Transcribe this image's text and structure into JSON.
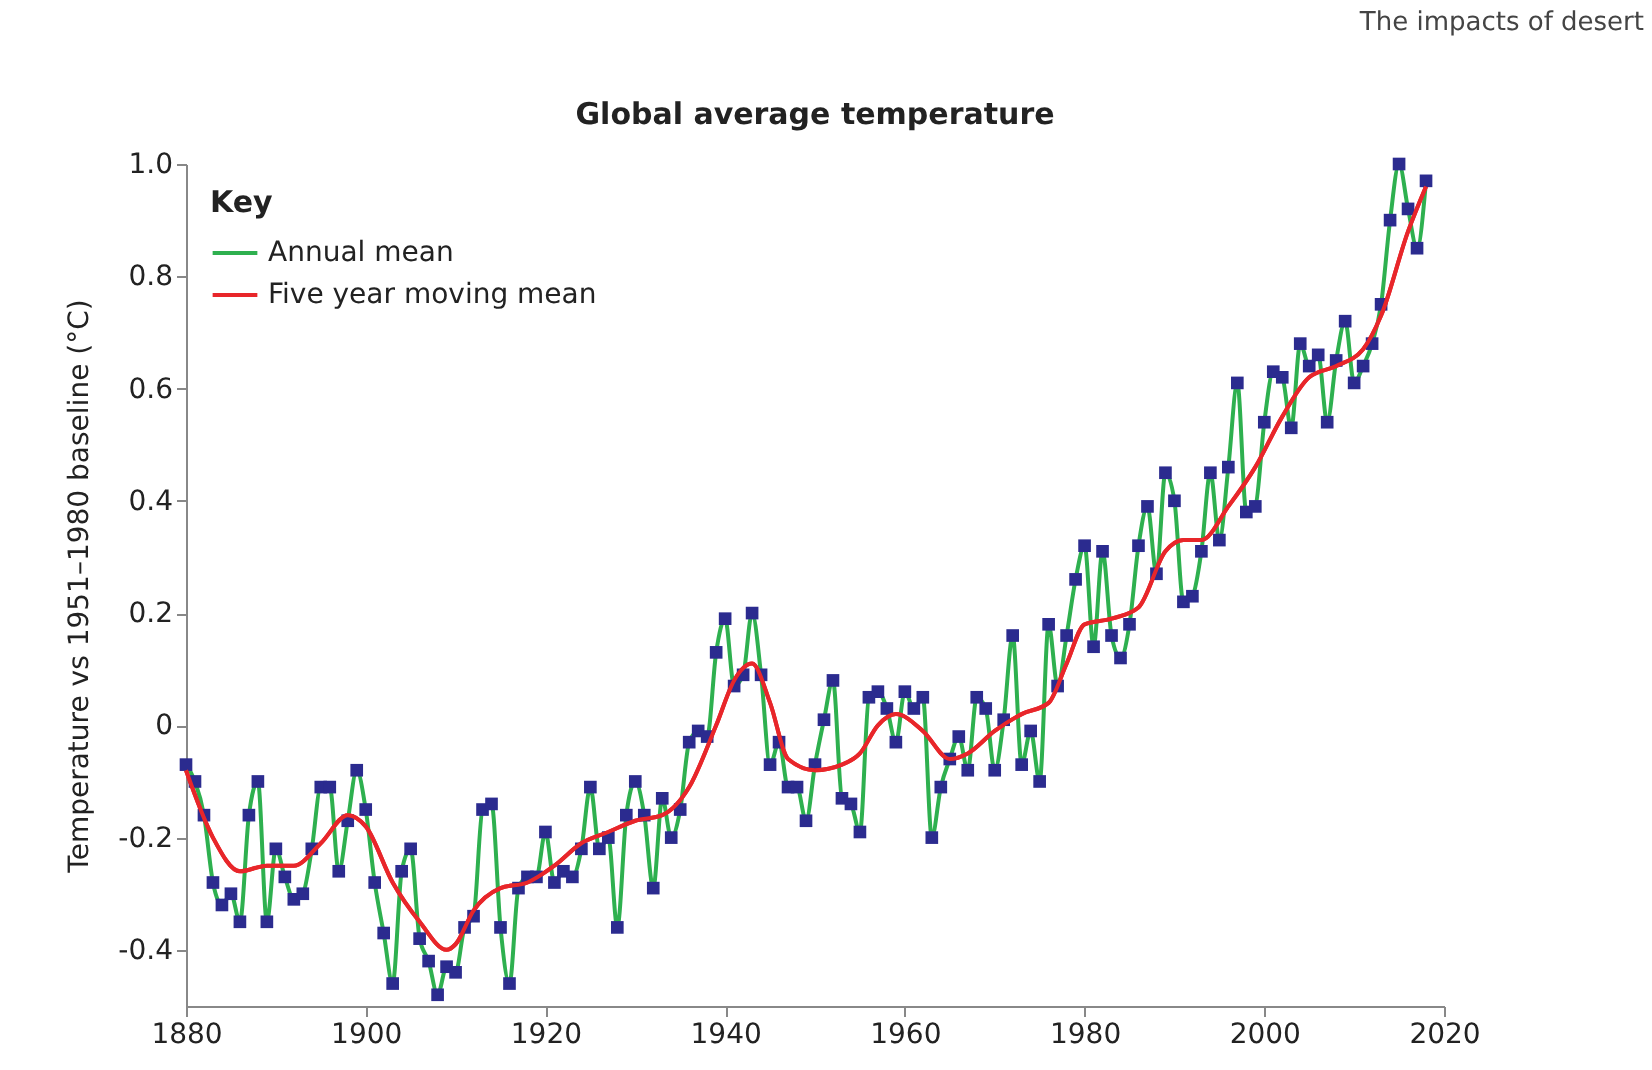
{
  "chart_data": {
    "type": "line",
    "title": "Global average temperature",
    "ylabel": "Temperature vs 1951–1980 baseline (°C)",
    "annotations": [
      "The impacts of desert"
    ],
    "legend_title": "Key",
    "legend": "top left",
    "marker": "square",
    "grid": false,
    "xlim": [
      1880,
      2020
    ],
    "xticks": [
      1880,
      1900,
      1920,
      1940,
      1960,
      1980,
      2000,
      2020
    ],
    "ylim": [
      -0.5,
      1.0
    ],
    "yticks": [
      -0.4,
      -0.2,
      0,
      0.2,
      0.4,
      0.6,
      0.8,
      {
        "value": 1.0,
        "label": "1.0"
      }
    ],
    "x": [
      1880,
      1881,
      1882,
      1883,
      1884,
      1885,
      1886,
      1887,
      1888,
      1889,
      1890,
      1891,
      1892,
      1893,
      1894,
      1895,
      1896,
      1897,
      1898,
      1899,
      1900,
      1901,
      1902,
      1903,
      1904,
      1905,
      1906,
      1907,
      1908,
      1909,
      1910,
      1911,
      1912,
      1913,
      1914,
      1915,
      1916,
      1917,
      1918,
      1919,
      1920,
      1921,
      1922,
      1923,
      1924,
      1925,
      1926,
      1927,
      1928,
      1929,
      1930,
      1931,
      1932,
      1933,
      1934,
      1935,
      1936,
      1937,
      1938,
      1939,
      1940,
      1941,
      1942,
      1943,
      1944,
      1945,
      1946,
      1947,
      1948,
      1949,
      1950,
      1951,
      1952,
      1953,
      1954,
      1955,
      1956,
      1957,
      1958,
      1959,
      1960,
      1961,
      1962,
      1963,
      1964,
      1965,
      1966,
      1967,
      1968,
      1969,
      1970,
      1971,
      1972,
      1973,
      1974,
      1975,
      1976,
      1977,
      1978,
      1979,
      1980,
      1981,
      1982,
      1983,
      1984,
      1985,
      1986,
      1987,
      1988,
      1989,
      1990,
      1991,
      1992,
      1993,
      1994,
      1995,
      1996,
      1997,
      1998,
      1999,
      2000,
      2001,
      2002,
      2003,
      2004,
      2005,
      2006,
      2007,
      2008,
      2009,
      2010,
      2011,
      2012,
      2013,
      2014,
      2015,
      2016,
      2017,
      2018
    ],
    "series": [
      {
        "name": "Annual mean",
        "color": "#2eb04f",
        "values": [
          -0.07,
          -0.1,
          -0.16,
          -0.28,
          -0.32,
          -0.3,
          -0.35,
          -0.16,
          -0.1,
          -0.35,
          -0.22,
          -0.27,
          -0.31,
          -0.3,
          -0.22,
          -0.11,
          -0.11,
          -0.26,
          -0.17,
          -0.08,
          -0.15,
          -0.28,
          -0.37,
          -0.46,
          -0.26,
          -0.22,
          -0.38,
          -0.42,
          -0.48,
          -0.43,
          -0.44,
          -0.36,
          -0.34,
          -0.15,
          -0.14,
          -0.36,
          -0.46,
          -0.29,
          -0.27,
          -0.27,
          -0.19,
          -0.28,
          -0.26,
          -0.27,
          -0.22,
          -0.11,
          -0.22,
          -0.2,
          -0.36,
          -0.16,
          -0.1,
          -0.16,
          -0.29,
          -0.13,
          -0.2,
          -0.15,
          -0.03,
          -0.01,
          -0.02,
          0.13,
          0.19,
          0.07,
          0.09,
          0.2,
          0.09,
          -0.07,
          -0.03,
          -0.11,
          -0.11,
          -0.17,
          -0.07,
          0.01,
          0.08,
          -0.13,
          -0.14,
          -0.19,
          0.05,
          0.06,
          0.03,
          -0.03,
          0.06,
          0.03,
          0.05,
          -0.2,
          -0.11,
          -0.06,
          -0.02,
          -0.08,
          0.05,
          0.03,
          -0.08,
          0.01,
          0.16,
          -0.07,
          -0.01,
          -0.1,
          0.18,
          0.07,
          0.16,
          0.26,
          0.32,
          0.14,
          0.31,
          0.16,
          0.12,
          0.18,
          0.32,
          0.39,
          0.27,
          0.45,
          0.4,
          0.22,
          0.23,
          0.31,
          0.45,
          0.33,
          0.46,
          0.61,
          0.38,
          0.39,
          0.54,
          0.63,
          0.62,
          0.53,
          0.68,
          0.64,
          0.66,
          0.54,
          0.65,
          0.72,
          0.61,
          0.64,
          0.68,
          0.75,
          0.9,
          1.0,
          0.92,
          0.85,
          0.97
        ]
      },
      {
        "name": "Five year moving mean",
        "color": "#e8262a",
        "marker": "none",
        "x": [
          1880,
          1883,
          1886,
          1889,
          1892,
          1895,
          1898,
          1900,
          1903,
          1906,
          1909,
          1910,
          1912,
          1915,
          1918,
          1921,
          1924,
          1927,
          1930,
          1933,
          1936,
          1939,
          1941,
          1943,
          1945,
          1947,
          1950,
          1953,
          1955,
          1957,
          1959,
          1962,
          1965,
          1967,
          1970,
          1973,
          1976,
          1978,
          1980,
          1983,
          1986,
          1989,
          1991,
          1993,
          1996,
          1999,
          2002,
          2005,
          2008,
          2011,
          2013,
          2016,
          2018
        ],
        "values": [
          -0.08,
          -0.2,
          -0.26,
          -0.25,
          -0.25,
          -0.21,
          -0.16,
          -0.18,
          -0.28,
          -0.35,
          -0.4,
          -0.39,
          -0.33,
          -0.29,
          -0.28,
          -0.25,
          -0.21,
          -0.19,
          -0.17,
          -0.16,
          -0.11,
          0.0,
          0.08,
          0.11,
          0.04,
          -0.06,
          -0.08,
          -0.07,
          -0.05,
          0.0,
          0.02,
          -0.01,
          -0.06,
          -0.05,
          -0.01,
          0.02,
          0.04,
          0.11,
          0.18,
          0.19,
          0.21,
          0.31,
          0.33,
          0.33,
          0.39,
          0.46,
          0.55,
          0.62,
          0.64,
          0.67,
          0.73,
          0.88,
          0.96
        ]
      }
    ]
  }
}
